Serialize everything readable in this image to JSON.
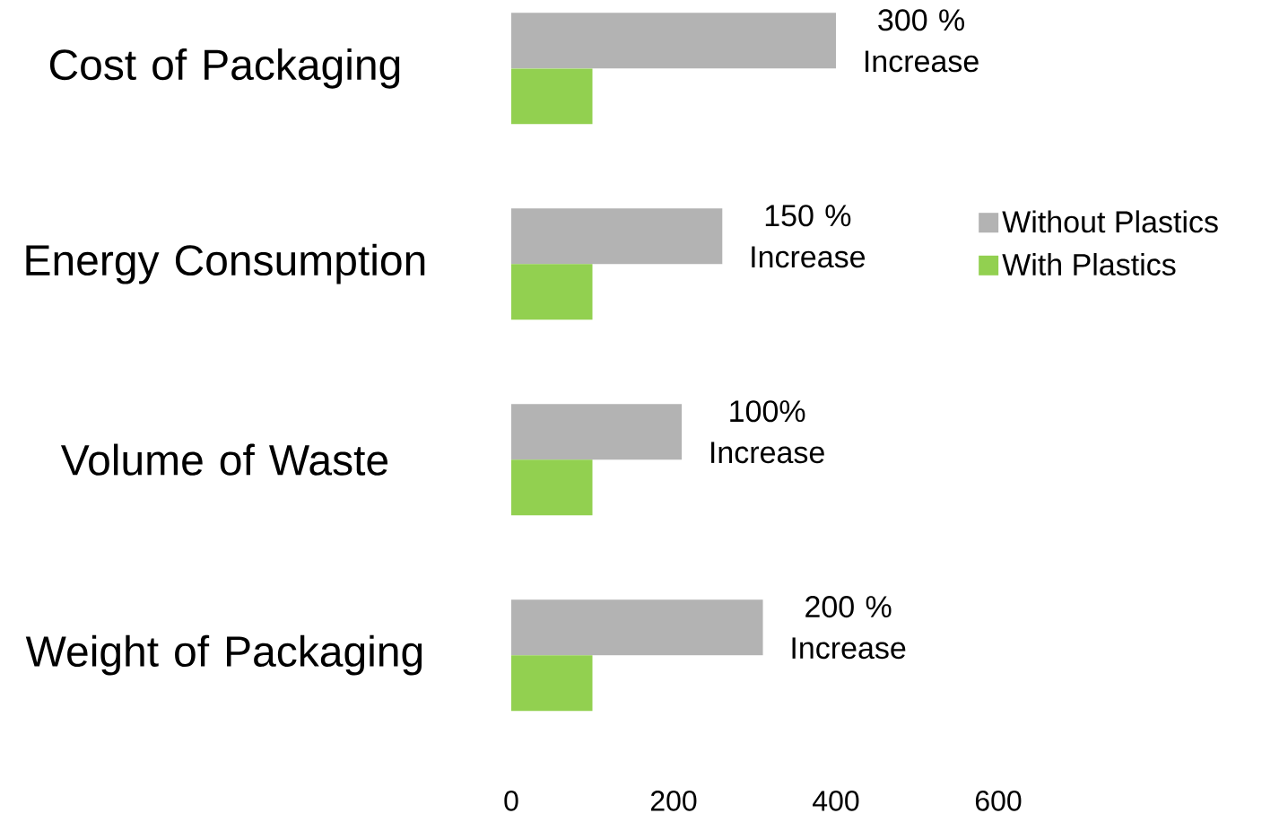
{
  "chart_data": {
    "type": "bar",
    "orientation": "horizontal",
    "categories": [
      "Cost of Packaging",
      "Energy Consumption",
      "Volume of Waste",
      "Weight of Packaging"
    ],
    "series": [
      {
        "name": "Without Plastics",
        "color": "#b3b3b3",
        "values": [
          400,
          260,
          210,
          310
        ]
      },
      {
        "name": "With Plastics",
        "color": "#92d050",
        "values": [
          100,
          100,
          100,
          100
        ]
      }
    ],
    "xlim": [
      0,
      600
    ],
    "xticks": [
      0,
      200,
      400,
      600
    ],
    "legend": "right",
    "annotations": [
      {
        "text": "300 % Increase",
        "x": 400,
        "y": "Cost of Packaging"
      },
      {
        "text": "150 % Increase",
        "x": 260,
        "y": "Energy Consumption"
      },
      {
        "text": "100% Increase",
        "x": 210,
        "y": "Volume of Waste"
      },
      {
        "text": "200 % Increase",
        "x": 310,
        "y": "Weight of Packaging"
      }
    ]
  }
}
